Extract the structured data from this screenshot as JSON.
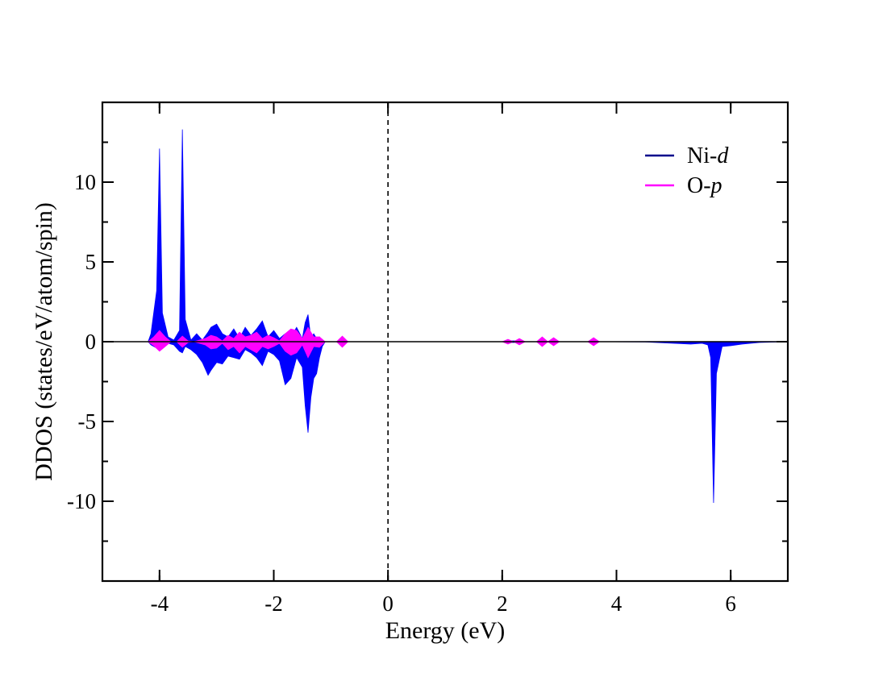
{
  "chart_data": {
    "type": "area",
    "xlabel": "Energy (eV)",
    "ylabel": "DDOS (states/eV/atom/spin)",
    "xlim": [
      -5,
      7
    ],
    "ylim": [
      -15,
      15
    ],
    "xticks": [
      -4,
      -2,
      0,
      2,
      4,
      6
    ],
    "xtick_labels": [
      "-4",
      "-2",
      "0",
      "2",
      "4",
      "6"
    ],
    "yticks": [
      -10,
      -5,
      0,
      5,
      10
    ],
    "ytick_labels": [
      "-10",
      "-5",
      "0",
      "5",
      "10"
    ],
    "fermi_level": 0,
    "grid": false,
    "legend_position": "top-right",
    "series": [
      {
        "name": "Ni-d",
        "name_prefix": "Ni-",
        "name_italic": "d",
        "color": "#0000ff",
        "line_color": "#00008b",
        "x": [
          -5.0,
          -4.2,
          -4.15,
          -4.05,
          -4.0,
          -3.95,
          -3.85,
          -3.75,
          -3.65,
          -3.6,
          -3.55,
          -3.45,
          -3.35,
          -3.25,
          -3.15,
          -3.1,
          -3.0,
          -2.9,
          -2.8,
          -2.7,
          -2.6,
          -2.5,
          -2.4,
          -2.3,
          -2.2,
          -2.1,
          -2.0,
          -1.9,
          -1.8,
          -1.7,
          -1.6,
          -1.5,
          -1.45,
          -1.4,
          -1.35,
          -1.3,
          -1.25,
          -1.2,
          -1.15,
          -1.1,
          -0.9,
          -0.8,
          -0.7,
          0.0,
          2.05,
          2.1,
          2.2,
          2.3,
          2.4,
          2.6,
          2.7,
          2.8,
          2.9,
          3.0,
          3.5,
          3.6,
          3.7,
          4.5,
          5.0,
          5.3,
          5.5,
          5.6,
          5.65,
          5.7,
          5.75,
          5.85,
          6.0,
          6.2,
          6.5,
          7.0
        ],
        "upper": [
          0,
          0,
          0.5,
          3.2,
          12.1,
          1.8,
          0.3,
          0.1,
          0.7,
          13.3,
          1.4,
          0.1,
          0.5,
          0.1,
          0.6,
          0.9,
          1.1,
          0.5,
          0.3,
          0.8,
          0.2,
          0.9,
          0.4,
          0.8,
          1.3,
          0.3,
          0.7,
          0.2,
          0.5,
          0.3,
          0.9,
          0.2,
          1.2,
          1.7,
          0.2,
          0.5,
          0.2,
          0.3,
          0.1,
          0,
          0,
          0.2,
          0,
          0,
          0,
          0.05,
          0.05,
          0.05,
          0,
          0,
          0.1,
          0,
          0.1,
          0,
          0,
          0.1,
          0,
          0,
          0,
          0,
          0,
          0,
          0,
          0,
          0,
          0,
          0,
          0,
          0,
          0
        ],
        "lower": [
          0,
          0,
          -0.2,
          -0.4,
          -0.5,
          -0.3,
          -0.1,
          -0.2,
          -0.6,
          -0.7,
          -0.3,
          -0.5,
          -0.8,
          -1.3,
          -2.1,
          -1.8,
          -1.3,
          -1.4,
          -0.9,
          -1.0,
          -1.1,
          -0.5,
          -0.7,
          -1.0,
          -1.5,
          -0.6,
          -0.8,
          -1.2,
          -2.7,
          -2.3,
          -1.0,
          -1.6,
          -4.0,
          -5.7,
          -3.5,
          -2.3,
          -2.0,
          -1.0,
          -0.3,
          0,
          0,
          -0.1,
          0,
          0,
          0,
          -0.05,
          -0.05,
          -0.05,
          0,
          0,
          -0.1,
          0,
          -0.1,
          0,
          0,
          -0.1,
          0,
          -0.02,
          -0.1,
          -0.15,
          -0.1,
          -0.2,
          -1.0,
          -10.1,
          -2.0,
          -0.3,
          -0.25,
          -0.15,
          -0.05,
          0
        ]
      },
      {
        "name": "O-p",
        "name_prefix": "O-",
        "name_italic": "p",
        "color": "#ff00ff",
        "line_color": "#ff00ff",
        "x": [
          -5.0,
          -4.2,
          -4.1,
          -4.0,
          -3.9,
          -3.8,
          -3.7,
          -3.6,
          -3.5,
          -3.4,
          -3.2,
          -3.1,
          -3.0,
          -2.9,
          -2.8,
          -2.7,
          -2.6,
          -2.5,
          -2.4,
          -2.3,
          -2.2,
          -2.1,
          -2.0,
          -1.9,
          -1.8,
          -1.7,
          -1.6,
          -1.5,
          -1.4,
          -1.3,
          -1.2,
          -1.1,
          -0.9,
          -0.8,
          -0.7,
          0.0,
          2.0,
          2.1,
          2.2,
          2.3,
          2.4,
          2.6,
          2.7,
          2.8,
          2.9,
          3.0,
          3.5,
          3.6,
          3.7,
          7.0
        ],
        "upper": [
          0,
          0,
          0.3,
          0.7,
          0.3,
          0,
          0,
          0.35,
          0.05,
          0,
          0.2,
          0.4,
          0.3,
          0.05,
          0.4,
          0.2,
          0.6,
          0.3,
          0.4,
          0.6,
          0.2,
          0.4,
          0.25,
          0.05,
          0.5,
          0.8,
          0.7,
          0.2,
          0.9,
          0.3,
          0.3,
          0,
          0,
          0.35,
          0,
          0,
          0,
          0.15,
          0,
          0.2,
          0,
          0,
          0.3,
          0,
          0.25,
          0,
          0,
          0.25,
          0,
          0
        ],
        "lower": [
          0,
          0,
          -0.25,
          -0.6,
          -0.3,
          0,
          0,
          -0.35,
          -0.05,
          0,
          -0.2,
          -0.45,
          -0.4,
          -0.1,
          -0.5,
          -0.3,
          -0.7,
          -0.3,
          -0.5,
          -0.7,
          -0.3,
          -0.45,
          -0.3,
          -0.1,
          -0.6,
          -0.85,
          -0.7,
          -0.2,
          -1.0,
          -0.3,
          -0.35,
          0,
          0,
          -0.35,
          0,
          0,
          0,
          -0.15,
          0,
          -0.2,
          0,
          0,
          -0.3,
          0,
          -0.25,
          0,
          0,
          -0.25,
          0,
          0
        ]
      }
    ]
  }
}
